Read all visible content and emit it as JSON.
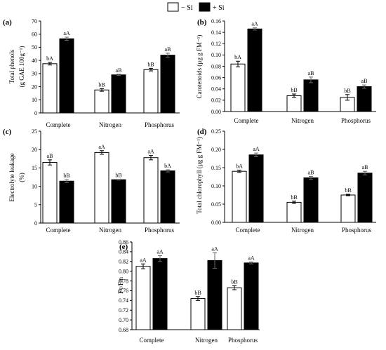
{
  "legend": {
    "items": [
      {
        "label": "− Si",
        "color": "#ffffff"
      },
      {
        "label": "+ Si",
        "color": "#000000"
      }
    ]
  },
  "chart_data": [
    {
      "type": "bar",
      "panel": "(a)",
      "ylabel": "Total phenols",
      "ylabel2": "(g GAE 100g⁻¹)",
      "categories": [
        "Complete",
        "Nitrogen",
        "Phosphorus"
      ],
      "ylim": [
        0,
        70
      ],
      "yticks": [
        "0",
        "10",
        "20",
        "30",
        "40",
        "50",
        "60",
        "70"
      ],
      "series": [
        {
          "name": "− Si",
          "values": [
            37.5,
            17.5,
            33
          ],
          "errors": [
            1.0,
            1.0,
            1.0
          ],
          "labels": [
            "bA",
            "bB",
            "bB"
          ]
        },
        {
          "name": "+ Si",
          "values": [
            56.5,
            29,
            44
          ],
          "errors": [
            1.2,
            0.5,
            1.5
          ],
          "labels": [
            "aA",
            "aB",
            "aB"
          ]
        }
      ]
    },
    {
      "type": "bar",
      "panel": "(b)",
      "ylabel": "Carotenoids (µg g FM⁻¹)",
      "categories": [
        "Complete",
        "Nitrogen",
        "Phosphorus"
      ],
      "ylim": [
        0,
        0.16
      ],
      "yticks": [
        "0.00",
        "0.02",
        "0.04",
        "0.06",
        "0.08",
        "0.10",
        "0.12",
        "0.14",
        "0.16"
      ],
      "series": [
        {
          "name": "− Si",
          "values": [
            0.084,
            0.028,
            0.025
          ],
          "errors": [
            0.005,
            0.003,
            0.005
          ],
          "labels": [
            "bA",
            "bB",
            "bB"
          ]
        },
        {
          "name": "+ Si",
          "values": [
            0.146,
            0.056,
            0.044
          ],
          "errors": [
            0.002,
            0.005,
            0.003
          ],
          "labels": [
            "aA",
            "aB",
            "aB"
          ]
        }
      ]
    },
    {
      "type": "bar",
      "panel": "(c)",
      "ylabel": "Electrolyte leakage",
      "ylabel2": "(%)",
      "categories": [
        "Complete",
        "Nitrogen",
        "Phosphorus"
      ],
      "ylim": [
        0,
        25
      ],
      "yticks": [
        "0",
        "5",
        "10",
        "15",
        "20",
        "25"
      ],
      "series": [
        {
          "name": "− Si",
          "values": [
            16.5,
            19.2,
            17.8
          ],
          "errors": [
            0.7,
            0.5,
            0.6
          ],
          "labels": [
            "aB",
            "aA",
            "aA"
          ]
        },
        {
          "name": "+ Si",
          "values": [
            11.4,
            11.8,
            14.2
          ],
          "errors": [
            0.4,
            0.1,
            0.3
          ],
          "labels": [
            "bB",
            "bB",
            "bA"
          ]
        }
      ]
    },
    {
      "type": "bar",
      "panel": "(d)",
      "ylabel": "Total chlorophyll (µg g FM⁻¹)",
      "categories": [
        "Complete",
        "Nitrogen",
        "Phosphorus"
      ],
      "ylim": [
        0,
        0.25
      ],
      "yticks": [
        "0.00",
        "0.05",
        "0.10",
        "0.15",
        "0.20",
        "0.25"
      ],
      "series": [
        {
          "name": "− Si",
          "values": [
            0.14,
            0.055,
            0.075
          ],
          "errors": [
            0.003,
            0.003,
            0.002
          ],
          "labels": [
            "bA",
            "bB",
            "bB"
          ]
        },
        {
          "name": "+ Si",
          "values": [
            0.185,
            0.122,
            0.135
          ],
          "errors": [
            0.005,
            0.004,
            0.005
          ],
          "labels": [
            "aA",
            "aB",
            "aB"
          ]
        }
      ]
    },
    {
      "type": "bar",
      "panel": "(e)",
      "ylabel": "Fv/Fm",
      "categories": [
        "Complete",
        "Nitrogen",
        "Phosphorus"
      ],
      "ylim": [
        0.68,
        0.86
      ],
      "yticks": [
        "0.68",
        "0.70",
        "0.72",
        "0.74",
        "0.76",
        "0.78",
        "0.80",
        "0.82",
        "0.84",
        "0.86"
      ],
      "series": [
        {
          "name": "− Si",
          "values": [
            0.81,
            0.744,
            0.766
          ],
          "errors": [
            0.005,
            0.004,
            0.004
          ],
          "labels": [
            "aA",
            "bB",
            "bB"
          ]
        },
        {
          "name": "+ Si",
          "values": [
            0.826,
            0.822,
            0.817
          ],
          "errors": [
            0.006,
            0.016,
            0.002
          ],
          "labels": [
            "aA",
            "aA",
            "aA"
          ]
        }
      ]
    }
  ]
}
